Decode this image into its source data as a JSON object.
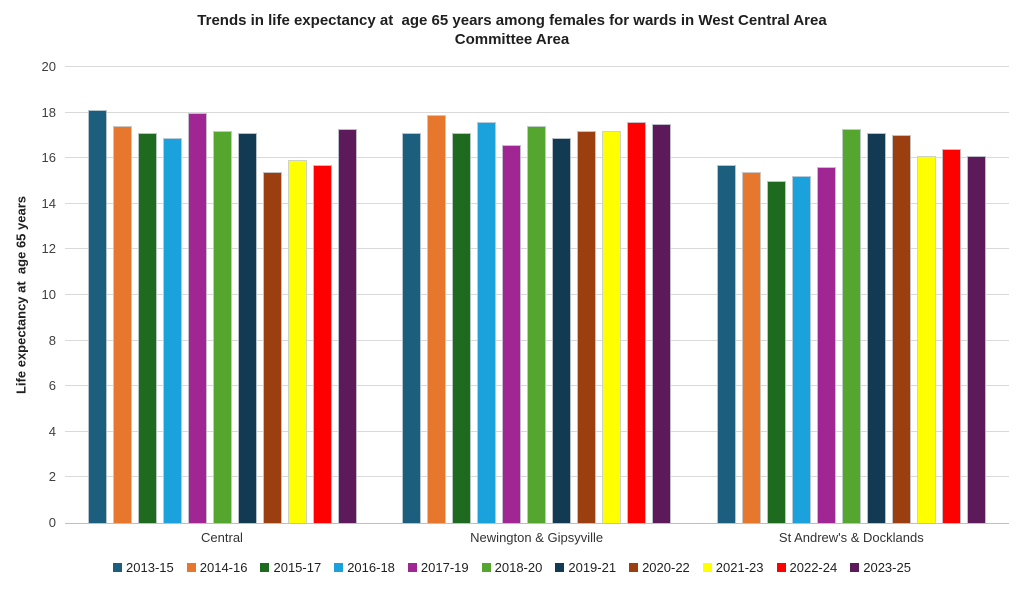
{
  "chart_data": {
    "type": "bar",
    "title": "Trends in life expectancy at  age 65 years among females for wards in West Central Area\nCommittee Area",
    "xlabel": "",
    "ylabel": "Life expectancy at  age 65 years",
    "ylim": [
      0,
      20
    ],
    "ytick_step": 2,
    "grid": true,
    "legend_position": "bottom",
    "categories": [
      "Central",
      "Newington & Gipsyville",
      "St Andrew's & Docklands"
    ],
    "series": [
      {
        "name": "2013-15",
        "color": "#1B5E7D",
        "values": [
          18.1,
          17.1,
          15.7
        ]
      },
      {
        "name": "2014-16",
        "color": "#E8772E",
        "values": [
          17.4,
          17.9,
          15.4
        ]
      },
      {
        "name": "2015-17",
        "color": "#1E6B1F",
        "values": [
          17.1,
          17.1,
          15.0
        ]
      },
      {
        "name": "2016-18",
        "color": "#1BA1DC",
        "values": [
          16.9,
          17.6,
          15.2
        ]
      },
      {
        "name": "2017-19",
        "color": "#A02693",
        "values": [
          18.0,
          16.6,
          15.6
        ]
      },
      {
        "name": "2018-20",
        "color": "#54A62E",
        "values": [
          17.2,
          17.4,
          17.3
        ]
      },
      {
        "name": "2019-21",
        "color": "#123A52",
        "values": [
          17.1,
          16.9,
          17.1
        ]
      },
      {
        "name": "2020-22",
        "color": "#9C3F10",
        "values": [
          15.4,
          17.2,
          17.0
        ]
      },
      {
        "name": "2021-23",
        "color": "#FFFF00",
        "values": [
          15.9,
          17.2,
          16.1
        ]
      },
      {
        "name": "2022-24",
        "color": "#FF0000",
        "values": [
          15.7,
          17.6,
          16.4
        ]
      },
      {
        "name": "2023-25",
        "color": "#5C1A5A",
        "values": [
          17.3,
          17.5,
          16.1
        ]
      }
    ]
  }
}
